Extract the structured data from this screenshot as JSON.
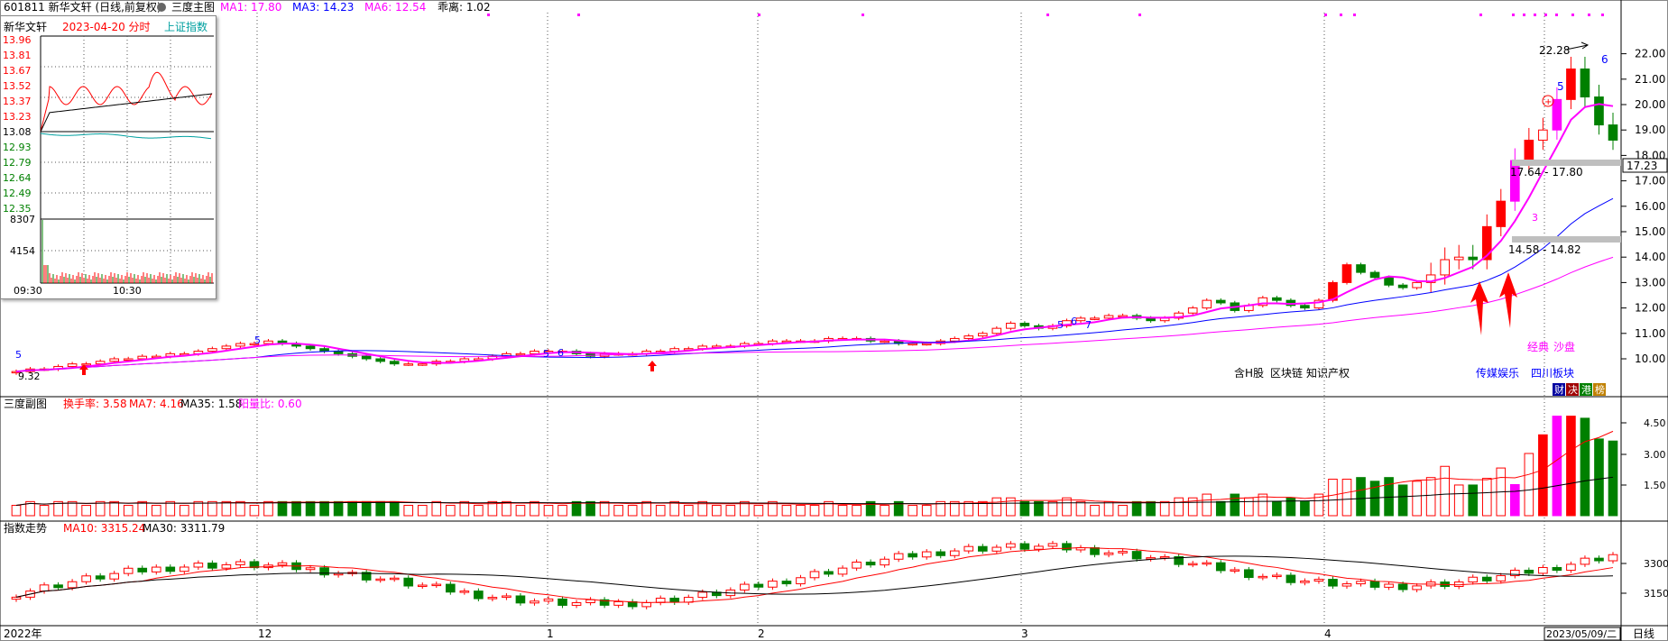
{
  "header": {
    "code_title": "601811 新华文轩 (日线,前复权)",
    "main_label": "三度主图",
    "ma1": "MA1: 17.80",
    "ma3": "MA3: 14.23",
    "ma6": "MA6: 12.54",
    "bias": "乖离: 1.02"
  },
  "inset": {
    "name": "新华文轩",
    "date": "2023-04-20 分时",
    "index_tag": "上证指数",
    "price_ticks": [
      "13.96",
      "13.81",
      "13.67",
      "13.52",
      "13.37",
      "13.23",
      "13.08",
      "12.93",
      "12.79",
      "12.64",
      "12.49",
      "12.35"
    ],
    "volume_ticks": [
      "8307",
      "4154"
    ],
    "time_labels": [
      "09:30",
      "10:30"
    ]
  },
  "annotations": {
    "high_label": "22.28",
    "box_upper": "17.64 - 17.80",
    "box_lower": "14.58 - 14.82",
    "current_price": "17.23",
    "low_label": "9.32",
    "seq_3": "3",
    "seq_5": "5",
    "seq_6": "6",
    "seq_7": "7",
    "tags_1": "含H股",
    "tags_2": "区块链",
    "tags_3": "知识产权",
    "tags_4": "传媒娱乐",
    "tags_5": "四川板块",
    "tags_6": "经典",
    "tags_7": "沙盘",
    "btn_1": "财",
    "btn_2": "决",
    "btn_3": "港",
    "btn_4": "榜"
  },
  "sub1": {
    "label": "三度副图",
    "turnover": "换手率: 3.58",
    "ma7": "MA7: 4.16",
    "ma35": "MA35: 1.58",
    "ratio": "阳量比: 0.60"
  },
  "sub2": {
    "label": "指数走势",
    "ma10": "MA10: 3315.24",
    "ma30": "MA30: 3311.79"
  },
  "x_axis": {
    "labels": [
      "2022年",
      "12",
      "1",
      "2",
      "3",
      "4"
    ],
    "cursor_date": "2023/05/09/二",
    "period": "日线"
  },
  "colors": {
    "up": "#ff0000",
    "down": "#008000",
    "magenta": "#ff00ff",
    "blue": "#0000ff"
  },
  "chart_data": [
    {
      "type": "candlestick",
      "panel": "price",
      "y_ticks": [
        10.0,
        11.0,
        12.0,
        13.0,
        14.0,
        15.0,
        16.0,
        17.0,
        18.0,
        19.0,
        20.0,
        21.0,
        22.0
      ],
      "ylim": [
        9.0,
        23.0
      ],
      "approx_close_series": [
        9.5,
        9.6,
        9.6,
        9.7,
        9.8,
        9.8,
        9.9,
        10.0,
        10.0,
        10.1,
        10.1,
        10.2,
        10.2,
        10.3,
        10.4,
        10.5,
        10.6,
        10.6,
        10.7,
        10.6,
        10.5,
        10.4,
        10.3,
        10.2,
        10.1,
        10.0,
        9.9,
        9.8,
        9.8,
        9.8,
        9.9,
        9.9,
        10.0,
        10.0,
        10.1,
        10.2,
        10.2,
        10.3,
        10.3,
        10.3,
        10.2,
        10.1,
        10.2,
        10.2,
        10.2,
        10.3,
        10.3,
        10.4,
        10.4,
        10.5,
        10.5,
        10.5,
        10.6,
        10.6,
        10.7,
        10.7,
        10.7,
        10.7,
        10.8,
        10.8,
        10.8,
        10.7,
        10.7,
        10.6,
        10.6,
        10.6,
        10.7,
        10.8,
        10.9,
        11.0,
        11.2,
        11.4,
        11.3,
        11.2,
        11.3,
        11.5,
        11.6,
        11.6,
        11.7,
        11.7,
        11.6,
        11.5,
        11.6,
        11.8,
        12.0,
        12.3,
        12.2,
        11.9,
        12.1,
        12.4,
        12.3,
        12.1,
        12.0,
        12.3,
        13.0,
        13.7,
        13.4,
        13.2,
        12.9,
        12.8,
        13.0,
        13.3,
        13.9,
        14.0,
        13.9,
        15.2,
        16.2,
        17.8,
        18.6,
        19.0,
        20.2,
        21.4,
        20.3,
        19.2,
        18.6
      ],
      "ma_lines": [
        "MA1",
        "MA3",
        "MA6"
      ]
    },
    {
      "type": "bar",
      "panel": "turnover",
      "y_ticks": [
        1.5,
        3.0,
        4.5
      ],
      "ylim": [
        0,
        5.0
      ]
    },
    {
      "type": "candlestick",
      "panel": "index",
      "y_ticks": [
        3150,
        3300
      ],
      "ylim": [
        3050,
        3380
      ]
    }
  ]
}
